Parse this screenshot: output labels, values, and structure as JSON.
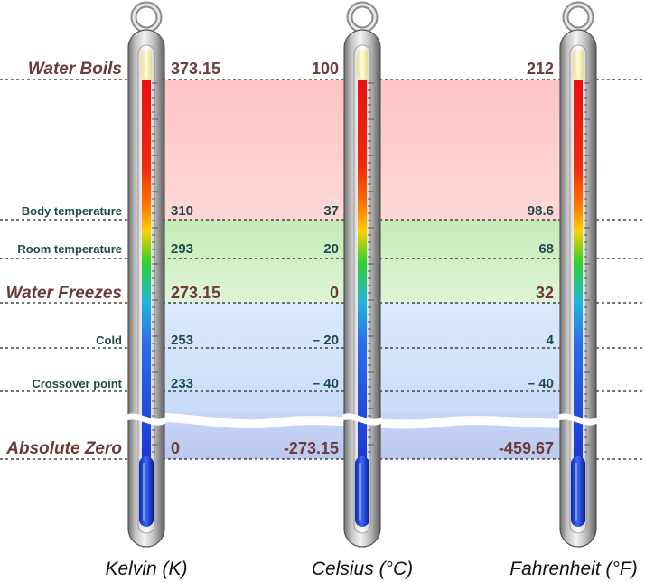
{
  "points": [
    {
      "key": "boils",
      "label": "Water Boils",
      "major": true,
      "kelvin": "373.15",
      "celsius": "100",
      "fahrenheit": "212"
    },
    {
      "key": "body",
      "label": "Body temperature",
      "major": false,
      "kelvin": "310",
      "celsius": "37",
      "fahrenheit": "98.6"
    },
    {
      "key": "room",
      "label": "Room temperature",
      "major": false,
      "kelvin": "293",
      "celsius": "20",
      "fahrenheit": "68"
    },
    {
      "key": "freezes",
      "label": "Water Freezes",
      "major": true,
      "kelvin": "273.15",
      "celsius": "0",
      "fahrenheit": "32"
    },
    {
      "key": "cold",
      "label": "Cold",
      "major": false,
      "kelvin": "253",
      "celsius": "– 20",
      "fahrenheit": "4"
    },
    {
      "key": "crossover",
      "label": "Crossover point",
      "major": false,
      "kelvin": "233",
      "celsius": "– 40",
      "fahrenheit": "– 40"
    },
    {
      "key": "zero",
      "label": "Absolute Zero",
      "major": true,
      "kelvin": "0",
      "celsius": "-273.15",
      "fahrenheit": "-459.67"
    }
  ],
  "scales": {
    "kelvin": "Kelvin (K)",
    "celsius": "Celsius (°C)",
    "fahrenheit": "Fahrenheit (°F)"
  },
  "colors": {
    "major_label": "#6b3a3a",
    "minor_label": "#1f4a4a",
    "hot_band": "#ffc9c9",
    "mild_band": "#cdeec0",
    "cool_band": "#cfe2fb",
    "frozen_band": "#c4cff2",
    "mercury_blue": "#1a3ad6",
    "mercury_red": "#e01414"
  }
}
